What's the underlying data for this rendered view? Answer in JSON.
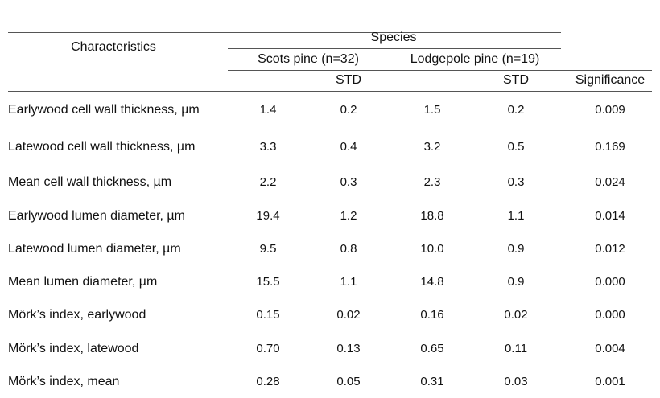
{
  "table": {
    "header": {
      "characteristics": "Characteristics",
      "species": "Species",
      "groups": [
        "Scots pine (n=32)",
        "Lodgepole pine (n=19)"
      ],
      "std": [
        "STD",
        "STD"
      ],
      "significance": "Significance"
    },
    "rows": [
      [
        "Earlywood cell wall thickness, µm",
        "1.4",
        "0.2",
        "1.5",
        "0.2",
        "0.009"
      ],
      [
        "Latewood cell wall thickness, µm",
        "3.3",
        "0.4",
        "3.2",
        "0.5",
        "0.169"
      ],
      [
        "Mean cell wall thickness, µm",
        "2.2",
        "0.3",
        "2.3",
        "0.3",
        "0.024"
      ],
      [
        "Earlywood lumen diameter, µm",
        "19.4",
        "1.2",
        "18.8",
        "1.1",
        "0.014"
      ],
      [
        "Latewood lumen diameter, µm",
        "9.5",
        "0.8",
        "10.0",
        "0.9",
        "0.012"
      ],
      [
        "Mean lumen diameter, µm",
        "15.5",
        "1.1",
        "14.8",
        "0.9",
        "0.000"
      ],
      [
        "Mörk’s index, earlywood",
        "0.15",
        "0.02",
        "0.16",
        "0.02",
        "0.000"
      ],
      [
        "Mörk’s index, latewood",
        "0.70",
        "0.13",
        "0.65",
        "0.11",
        "0.004"
      ],
      [
        "Mörk’s index, mean",
        "0.28",
        "0.05",
        "0.31",
        "0.03",
        "0.001"
      ]
    ]
  }
}
